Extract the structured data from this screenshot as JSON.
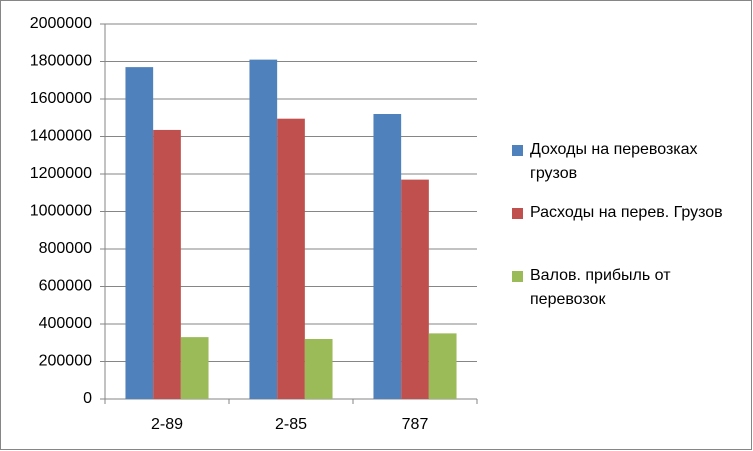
{
  "chart_data": {
    "type": "bar",
    "categories": [
      "2-89",
      "2-85",
      "787"
    ],
    "series": [
      {
        "name": "Доходы на перевозках грузов",
        "color": "#4f81bd",
        "values": [
          1770000,
          1810000,
          1520000
        ]
      },
      {
        "name": "Расходы на перев. Грузов",
        "color": "#c0504d",
        "values": [
          1435000,
          1495000,
          1170000
        ]
      },
      {
        "name": "Валов. прибыль от перевозок",
        "color": "#9bbb59",
        "values": [
          330000,
          320000,
          350000
        ]
      }
    ],
    "ylim": [
      0,
      2000000
    ],
    "yticks": [
      0,
      200000,
      400000,
      600000,
      800000,
      1000000,
      1200000,
      1400000,
      1600000,
      1800000,
      2000000
    ],
    "grid": true,
    "legend": "right"
  }
}
